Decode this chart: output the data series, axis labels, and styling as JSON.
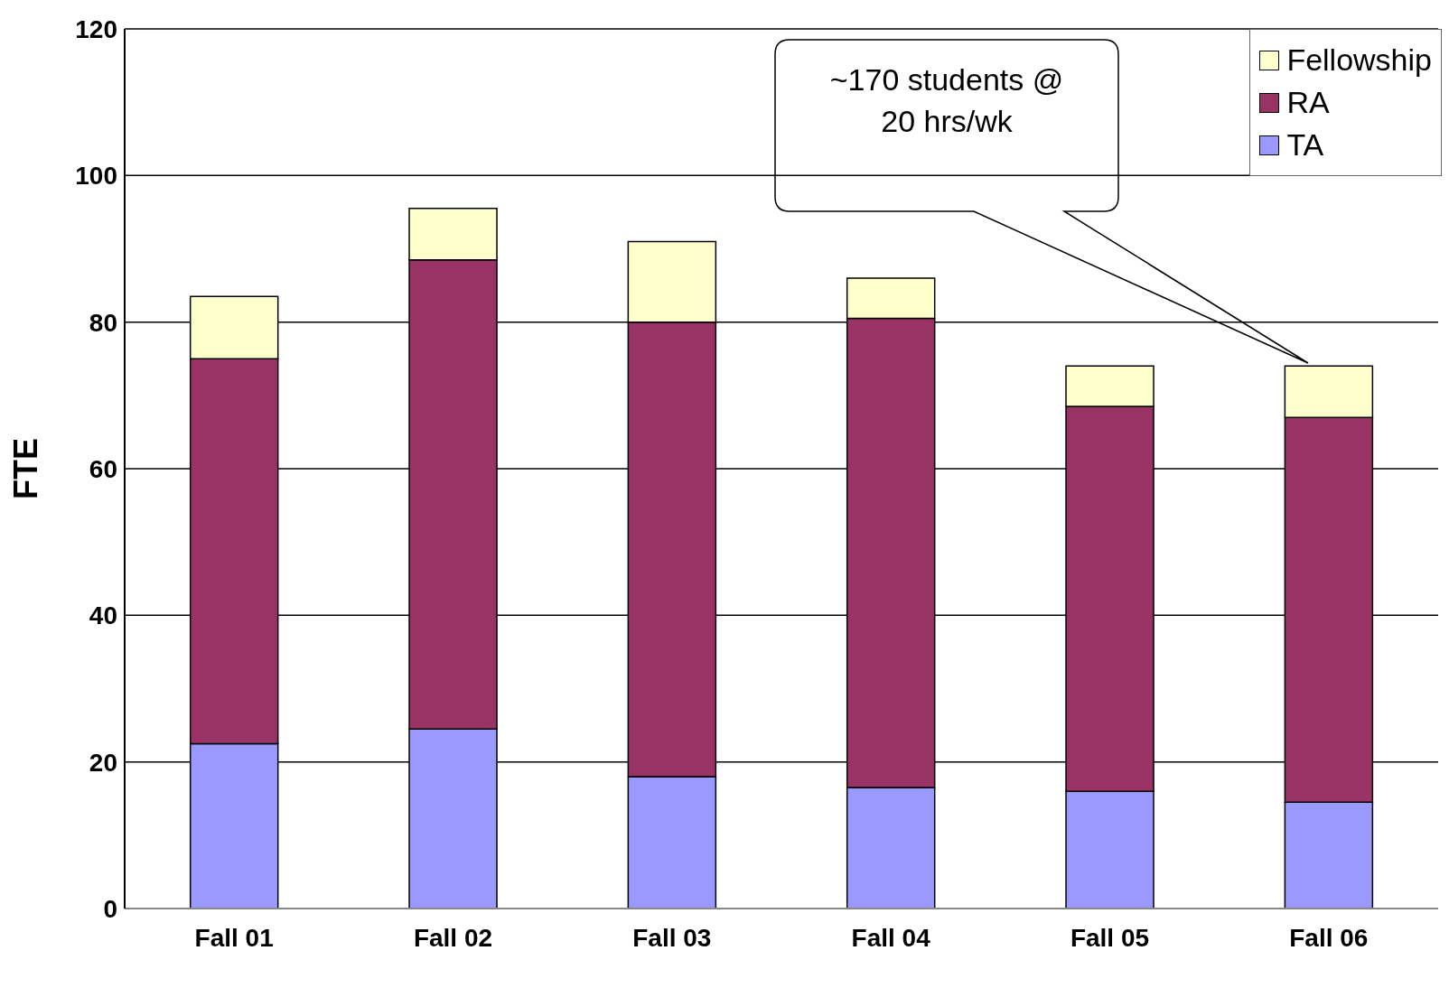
{
  "chart_data": {
    "type": "bar",
    "stacked": true,
    "ylabel": "FTE",
    "categories": [
      "Fall 01",
      "Fall 02",
      "Fall 03",
      "Fall 04",
      "Fall 05",
      "Fall 06"
    ],
    "series": [
      {
        "name": "TA",
        "color": "#9999ff",
        "values": [
          22.5,
          24.5,
          18,
          16.5,
          16,
          14.5
        ]
      },
      {
        "name": "RA",
        "color": "#993366",
        "values": [
          52.5,
          64,
          62,
          64,
          52.5,
          52.5
        ]
      },
      {
        "name": "Fellowship",
        "color": "#ffffcc",
        "values": [
          8.5,
          7,
          11,
          5.5,
          5.5,
          7
        ]
      }
    ],
    "ylim": [
      0,
      120
    ],
    "yticks": [
      0,
      20,
      40,
      60,
      80,
      100,
      120
    ],
    "grid": "y",
    "legend": "top right",
    "annotations": [
      "~170 students @ 20 hrs/wk"
    ]
  }
}
